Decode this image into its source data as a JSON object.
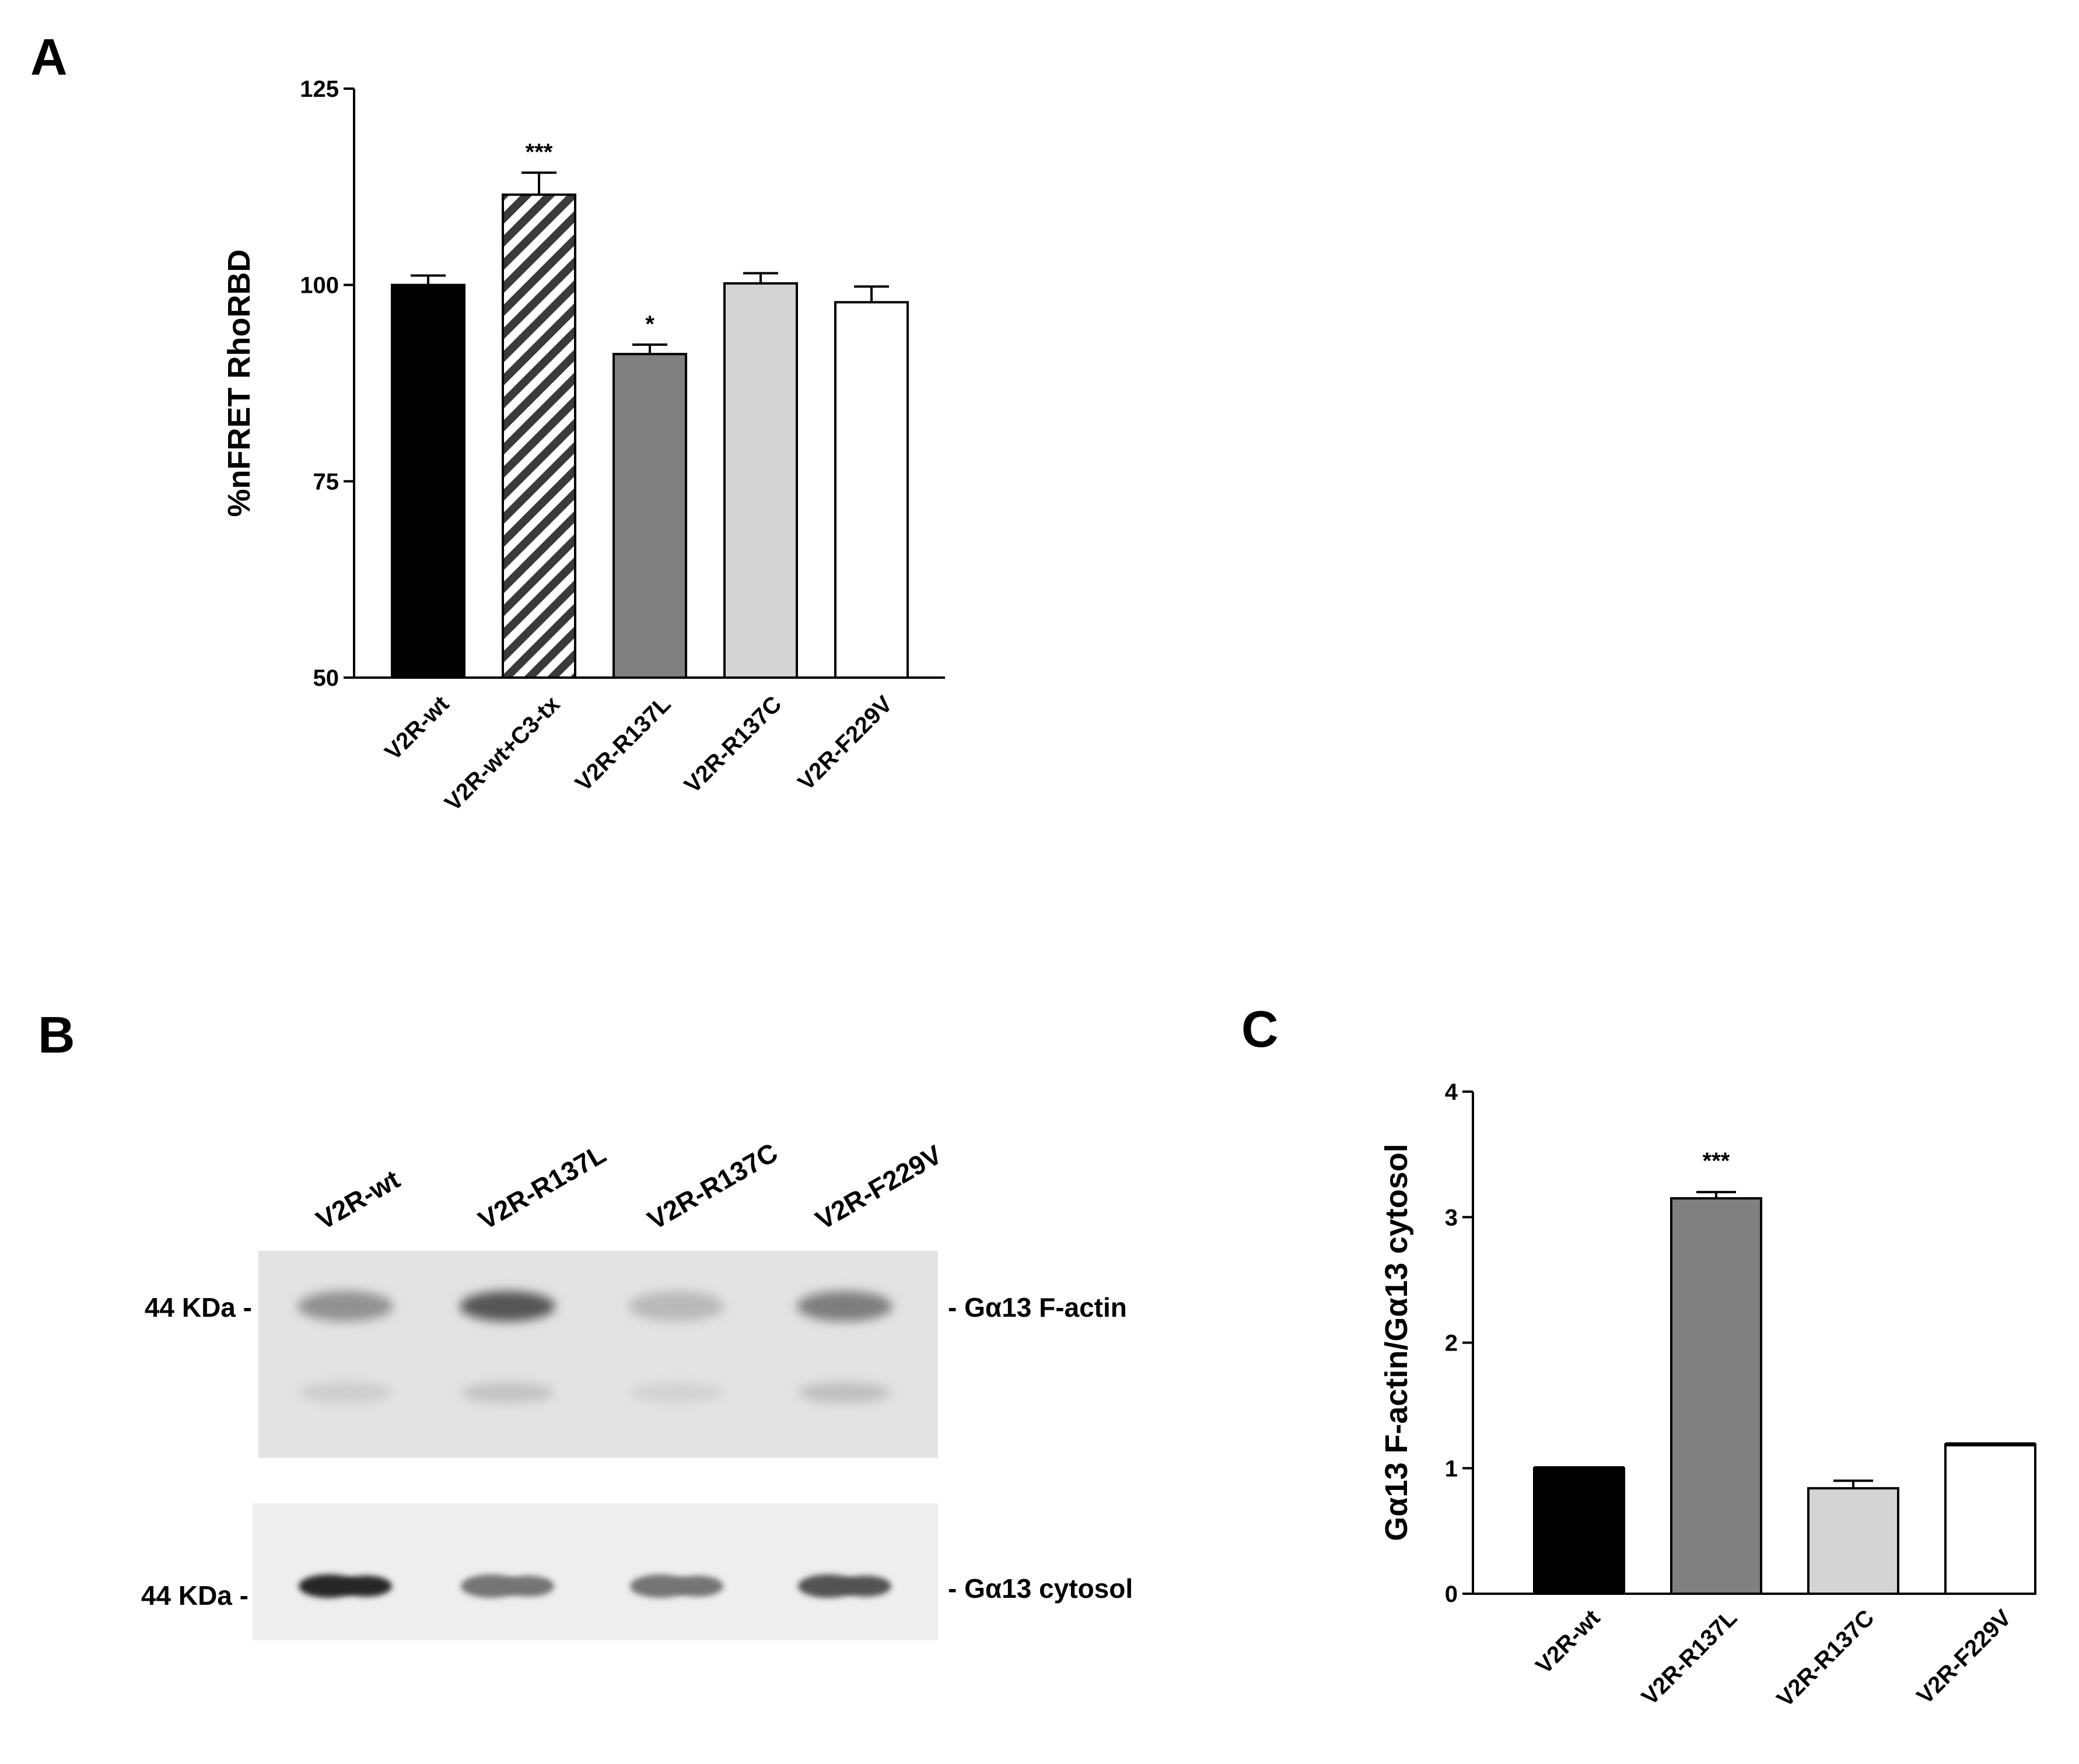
{
  "panels": {
    "a": "A",
    "b": "B",
    "c": "C"
  },
  "colors": {
    "black": "#000000",
    "dark_gray": "#808080",
    "light_gray": "#d4d4d4",
    "white": "#ffffff",
    "hatch": "#3a3a3a"
  },
  "chart_data": [
    {
      "id": "A",
      "type": "bar",
      "ylabel": "%nFRET RhoRBD",
      "ylim": [
        50,
        125
      ],
      "yticks": [
        50,
        75,
        100,
        125
      ],
      "categories": [
        "V2R-wt",
        "V2R-wt+C3-tx",
        "V2R-R137L",
        "V2R-R137C",
        "V2R-F229V"
      ],
      "values": [
        100,
        111.5,
        91.2,
        100.2,
        97.8
      ],
      "errors": [
        1.2,
        2.8,
        1.2,
        1.3,
        2.0
      ],
      "fills": [
        "black",
        "hatch",
        "dark_gray",
        "light_gray",
        "white"
      ],
      "significance": [
        "",
        "***",
        "*",
        "",
        ""
      ],
      "grid": false
    },
    {
      "id": "C",
      "type": "bar",
      "ylabel": "Gα13 F-actin/Gα13 cytosol",
      "ylim": [
        0,
        4
      ],
      "yticks": [
        0,
        1,
        2,
        3,
        4
      ],
      "categories": [
        "V2R-wt",
        "V2R-R137L",
        "V2R-R137C",
        "V2R-F229V"
      ],
      "values": [
        1.0,
        3.15,
        0.84,
        1.19
      ],
      "errors": [
        0.0,
        0.05,
        0.06,
        0.0
      ],
      "fills": [
        "black",
        "dark_gray",
        "light_gray",
        "white"
      ],
      "significance": [
        "",
        "***",
        "",
        ""
      ],
      "grid": false
    }
  ],
  "blot": {
    "lanes": [
      "V2R-wt",
      "V2R-R137L",
      "V2R-R137C",
      "V2R-F229V"
    ],
    "top_marker": "44 KDa -",
    "top_label": "- Gα13 F-actin",
    "bottom_marker": "44 KDa -",
    "bottom_label": "- Gα13 cytosol",
    "top_band_intensity": [
      0.55,
      0.85,
      0.35,
      0.65
    ],
    "top_lower_band_intensity": [
      0.25,
      0.3,
      0.22,
      0.32
    ],
    "bottom_band_intensity": [
      0.95,
      0.6,
      0.6,
      0.75
    ]
  }
}
